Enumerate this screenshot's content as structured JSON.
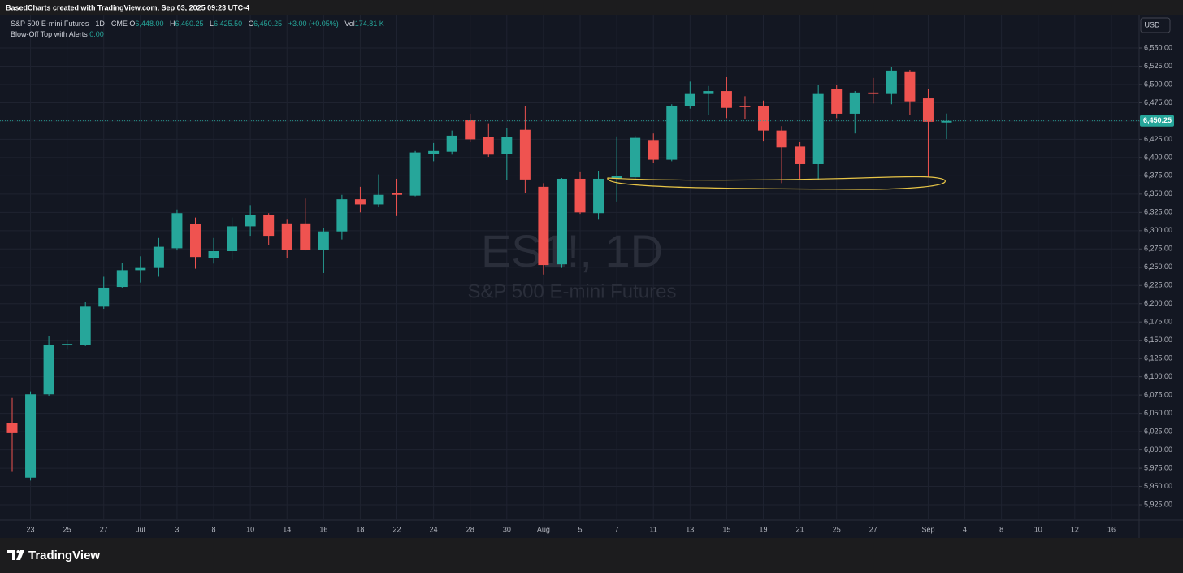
{
  "page_header": "BasedCharts created with TradingView.com, Sep 03, 2025 09:23 UTC-4",
  "legend": {
    "symbol": "S&P 500 E-mini Futures · 1D · CME",
    "o_label": "O",
    "o_value": "6,448.00",
    "h_label": "H",
    "h_value": "6,460.25",
    "l_label": "L",
    "l_value": "6,425.50",
    "c_label": "C",
    "c_value": "6,450.25",
    "change": "+3.00 (+0.05%)",
    "vol_label": "Vol",
    "vol_value": "174.81 K",
    "indicator": "Blow-Off Top with Alerts",
    "indicator_value": "0.00"
  },
  "currency_button": "USD",
  "brand": "TradingView",
  "chart_data": {
    "type": "candlestick",
    "watermark_title": "ES1!, 1D",
    "watermark_subtitle": "S&P 500 E-mini Futures",
    "up_color": "#26a69a",
    "down_color": "#ef5350",
    "grid": true,
    "x": [
      0,
      1,
      2,
      3,
      4,
      5,
      6,
      7,
      8,
      9,
      10,
      11,
      12,
      13,
      14,
      15,
      16,
      17,
      18,
      19,
      20,
      21,
      22,
      23,
      24,
      25,
      26,
      27,
      28,
      29,
      30,
      31,
      32,
      33,
      34,
      35,
      36,
      37,
      38,
      39,
      40,
      41,
      42,
      43,
      44,
      45,
      46,
      47,
      48,
      49,
      50,
      51
    ],
    "open": [
      6037,
      5962,
      6076,
      6144,
      6144,
      6196,
      6223,
      6246,
      6249,
      6276,
      6309,
      6263,
      6272,
      6306,
      6322,
      6310,
      6310,
      6274,
      6299,
      6343,
      6336,
      6351,
      6348,
      6405,
      6408,
      6451,
      6428,
      6405,
      6438,
      6360,
      6254,
      6371,
      6324,
      6371,
      6373,
      6424,
      6397,
      6470,
      6487,
      6491,
      6471,
      6471,
      6437,
      6415,
      6391,
      6494,
      6460,
      6489,
      6487,
      6518,
      6481,
      6448
    ],
    "high": [
      6071,
      6080,
      6156,
      6151,
      6202,
      6237,
      6256,
      6265,
      6290,
      6329,
      6318,
      6290,
      6318,
      6335,
      6324,
      6315,
      6344,
      6304,
      6349,
      6360,
      6377,
      6371,
      6409,
      6420,
      6437,
      6460,
      6447,
      6440,
      6471,
      6365,
      6372,
      6380,
      6382,
      6429,
      6430,
      6433,
      6473,
      6504,
      6498,
      6510,
      6484,
      6478,
      6443,
      6421,
      6500,
      6500,
      6491,
      6509,
      6524,
      6520,
      6494,
      6460.25
    ],
    "low": [
      5970,
      5958,
      6074,
      6137,
      6142,
      6193,
      6222,
      6229,
      6237,
      6273,
      6248,
      6255,
      6260,
      6293,
      6280,
      6262,
      6273,
      6242,
      6288,
      6325,
      6332,
      6320,
      6347,
      6395,
      6404,
      6421,
      6401,
      6369,
      6351,
      6240,
      6249,
      6323,
      6315,
      6340,
      6371,
      6393,
      6395,
      6467,
      6458,
      6454,
      6453,
      6422,
      6365,
      6371,
      6369,
      6454,
      6433,
      6474,
      6473,
      6458,
      6373,
      6425.5
    ],
    "close": [
      6023,
      6076,
      6143,
      6145,
      6196,
      6222,
      6246,
      6249,
      6278,
      6324,
      6264,
      6272,
      6306,
      6322,
      6293,
      6274,
      6274,
      6299,
      6343,
      6336,
      6349,
      6349,
      6407,
      6409,
      6430,
      6425,
      6404,
      6428,
      6370,
      6253,
      6371,
      6325,
      6371,
      6375,
      6427,
      6397,
      6470,
      6487,
      6491,
      6468,
      6469,
      6437,
      6414,
      6391,
      6487,
      6460,
      6489,
      6487,
      6519,
      6477,
      6449,
      6450.25
    ],
    "last_price": {
      "value": 6450.25,
      "label": "6,450.25"
    },
    "xlim": [
      -0.665,
      61.51
    ],
    "xticks": [
      {
        "value": 1,
        "label": "23"
      },
      {
        "value": 3,
        "label": "25"
      },
      {
        "value": 5,
        "label": "27"
      },
      {
        "value": 7,
        "label": "Jul"
      },
      {
        "value": 9,
        "label": "3"
      },
      {
        "value": 11,
        "label": "8"
      },
      {
        "value": 13,
        "label": "10"
      },
      {
        "value": 15,
        "label": "14"
      },
      {
        "value": 17,
        "label": "16"
      },
      {
        "value": 19,
        "label": "18"
      },
      {
        "value": 21,
        "label": "22"
      },
      {
        "value": 23,
        "label": "24"
      },
      {
        "value": 25,
        "label": "28"
      },
      {
        "value": 27,
        "label": "30"
      },
      {
        "value": 29,
        "label": "Aug"
      },
      {
        "value": 31,
        "label": "5"
      },
      {
        "value": 33,
        "label": "7"
      },
      {
        "value": 35,
        "label": "11"
      },
      {
        "value": 37,
        "label": "13"
      },
      {
        "value": 39,
        "label": "15"
      },
      {
        "value": 41,
        "label": "19"
      },
      {
        "value": 43,
        "label": "21"
      },
      {
        "value": 45,
        "label": "25"
      },
      {
        "value": 47,
        "label": "27"
      },
      {
        "value": 50,
        "label": "Sep"
      },
      {
        "value": 52,
        "label": "4"
      },
      {
        "value": 54,
        "label": "8"
      },
      {
        "value": 56,
        "label": "10"
      },
      {
        "value": 58,
        "label": "12"
      },
      {
        "value": 60,
        "label": "16"
      }
    ],
    "ylim": [
      5903.9,
      6595.6
    ],
    "yticks": [
      {
        "value": 5925,
        "label": "5,925.00"
      },
      {
        "value": 5950,
        "label": "5,950.00"
      },
      {
        "value": 5975,
        "label": "5,975.00"
      },
      {
        "value": 6000,
        "label": "6,000.00"
      },
      {
        "value": 6025,
        "label": "6,025.00"
      },
      {
        "value": 6050,
        "label": "6,050.00"
      },
      {
        "value": 6075,
        "label": "6,075.00"
      },
      {
        "value": 6100,
        "label": "6,100.00"
      },
      {
        "value": 6125,
        "label": "6,125.00"
      },
      {
        "value": 6150,
        "label": "6,150.00"
      },
      {
        "value": 6175,
        "label": "6,175.00"
      },
      {
        "value": 6200,
        "label": "6,200.00"
      },
      {
        "value": 6225,
        "label": "6,225.00"
      },
      {
        "value": 6250,
        "label": "6,250.00"
      },
      {
        "value": 6275,
        "label": "6,275.00"
      },
      {
        "value": 6300,
        "label": "6,300.00"
      },
      {
        "value": 6325,
        "label": "6,325.00"
      },
      {
        "value": 6350,
        "label": "6,350.00"
      },
      {
        "value": 6375,
        "label": "6,375.00"
      },
      {
        "value": 6400,
        "label": "6,400.00"
      },
      {
        "value": 6425,
        "label": "6,425.00"
      },
      {
        "value": 6450,
        "label": "6,450.00"
      },
      {
        "value": 6475,
        "label": "6,475.00"
      },
      {
        "value": 6500,
        "label": "6,500.00"
      },
      {
        "value": 6525,
        "label": "6,525.00"
      },
      {
        "value": 6550,
        "label": "6,550.00"
      }
    ]
  }
}
